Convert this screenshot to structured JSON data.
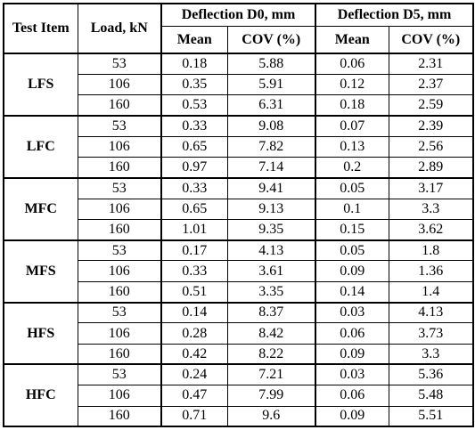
{
  "header": {
    "test_item": "Test Item",
    "load": "Load, kN",
    "d0_group": "Deflection D0, mm",
    "d5_group": "Deflection D5, mm",
    "mean": "Mean",
    "cov": "COV (%)"
  },
  "groups": [
    {
      "item": "LFS",
      "rows": [
        {
          "load": "53",
          "d0_mean": "0.18",
          "d0_cov": "5.88",
          "d5_mean": "0.06",
          "d5_cov": "2.31"
        },
        {
          "load": "106",
          "d0_mean": "0.35",
          "d0_cov": "5.91",
          "d5_mean": "0.12",
          "d5_cov": "2.37"
        },
        {
          "load": "160",
          "d0_mean": "0.53",
          "d0_cov": "6.31",
          "d5_mean": "0.18",
          "d5_cov": "2.59"
        }
      ]
    },
    {
      "item": "LFC",
      "rows": [
        {
          "load": "53",
          "d0_mean": "0.33",
          "d0_cov": "9.08",
          "d5_mean": "0.07",
          "d5_cov": "2.39"
        },
        {
          "load": "106",
          "d0_mean": "0.65",
          "d0_cov": "7.82",
          "d5_mean": "0.13",
          "d5_cov": "2.56"
        },
        {
          "load": "160",
          "d0_mean": "0.97",
          "d0_cov": "7.14",
          "d5_mean": "0.2",
          "d5_cov": "2.89"
        }
      ]
    },
    {
      "item": "MFC",
      "rows": [
        {
          "load": "53",
          "d0_mean": "0.33",
          "d0_cov": "9.41",
          "d5_mean": "0.05",
          "d5_cov": "3.17"
        },
        {
          "load": "106",
          "d0_mean": "0.65",
          "d0_cov": "9.13",
          "d5_mean": "0.1",
          "d5_cov": "3.3"
        },
        {
          "load": "160",
          "d0_mean": "1.01",
          "d0_cov": "9.35",
          "d5_mean": "0.15",
          "d5_cov": "3.62"
        }
      ]
    },
    {
      "item": "MFS",
      "rows": [
        {
          "load": "53",
          "d0_mean": "0.17",
          "d0_cov": "4.13",
          "d5_mean": "0.05",
          "d5_cov": "1.8"
        },
        {
          "load": "106",
          "d0_mean": "0.33",
          "d0_cov": "3.61",
          "d5_mean": "0.09",
          "d5_cov": "1.36"
        },
        {
          "load": "160",
          "d0_mean": "0.51",
          "d0_cov": "3.35",
          "d5_mean": "0.14",
          "d5_cov": "1.4"
        }
      ]
    },
    {
      "item": "HFS",
      "rows": [
        {
          "load": "53",
          "d0_mean": "0.14",
          "d0_cov": "8.37",
          "d5_mean": "0.03",
          "d5_cov": "4.13"
        },
        {
          "load": "106",
          "d0_mean": "0.28",
          "d0_cov": "8.42",
          "d5_mean": "0.06",
          "d5_cov": "3.73"
        },
        {
          "load": "160",
          "d0_mean": "0.42",
          "d0_cov": "8.22",
          "d5_mean": "0.09",
          "d5_cov": "3.3"
        }
      ]
    },
    {
      "item": "HFC",
      "rows": [
        {
          "load": "53",
          "d0_mean": "0.24",
          "d0_cov": "7.21",
          "d5_mean": "0.03",
          "d5_cov": "5.36"
        },
        {
          "load": "106",
          "d0_mean": "0.47",
          "d0_cov": "7.99",
          "d5_mean": "0.06",
          "d5_cov": "5.48"
        },
        {
          "load": "160",
          "d0_mean": "0.71",
          "d0_cov": "9.6",
          "d5_mean": "0.09",
          "d5_cov": "5.51"
        }
      ]
    }
  ]
}
